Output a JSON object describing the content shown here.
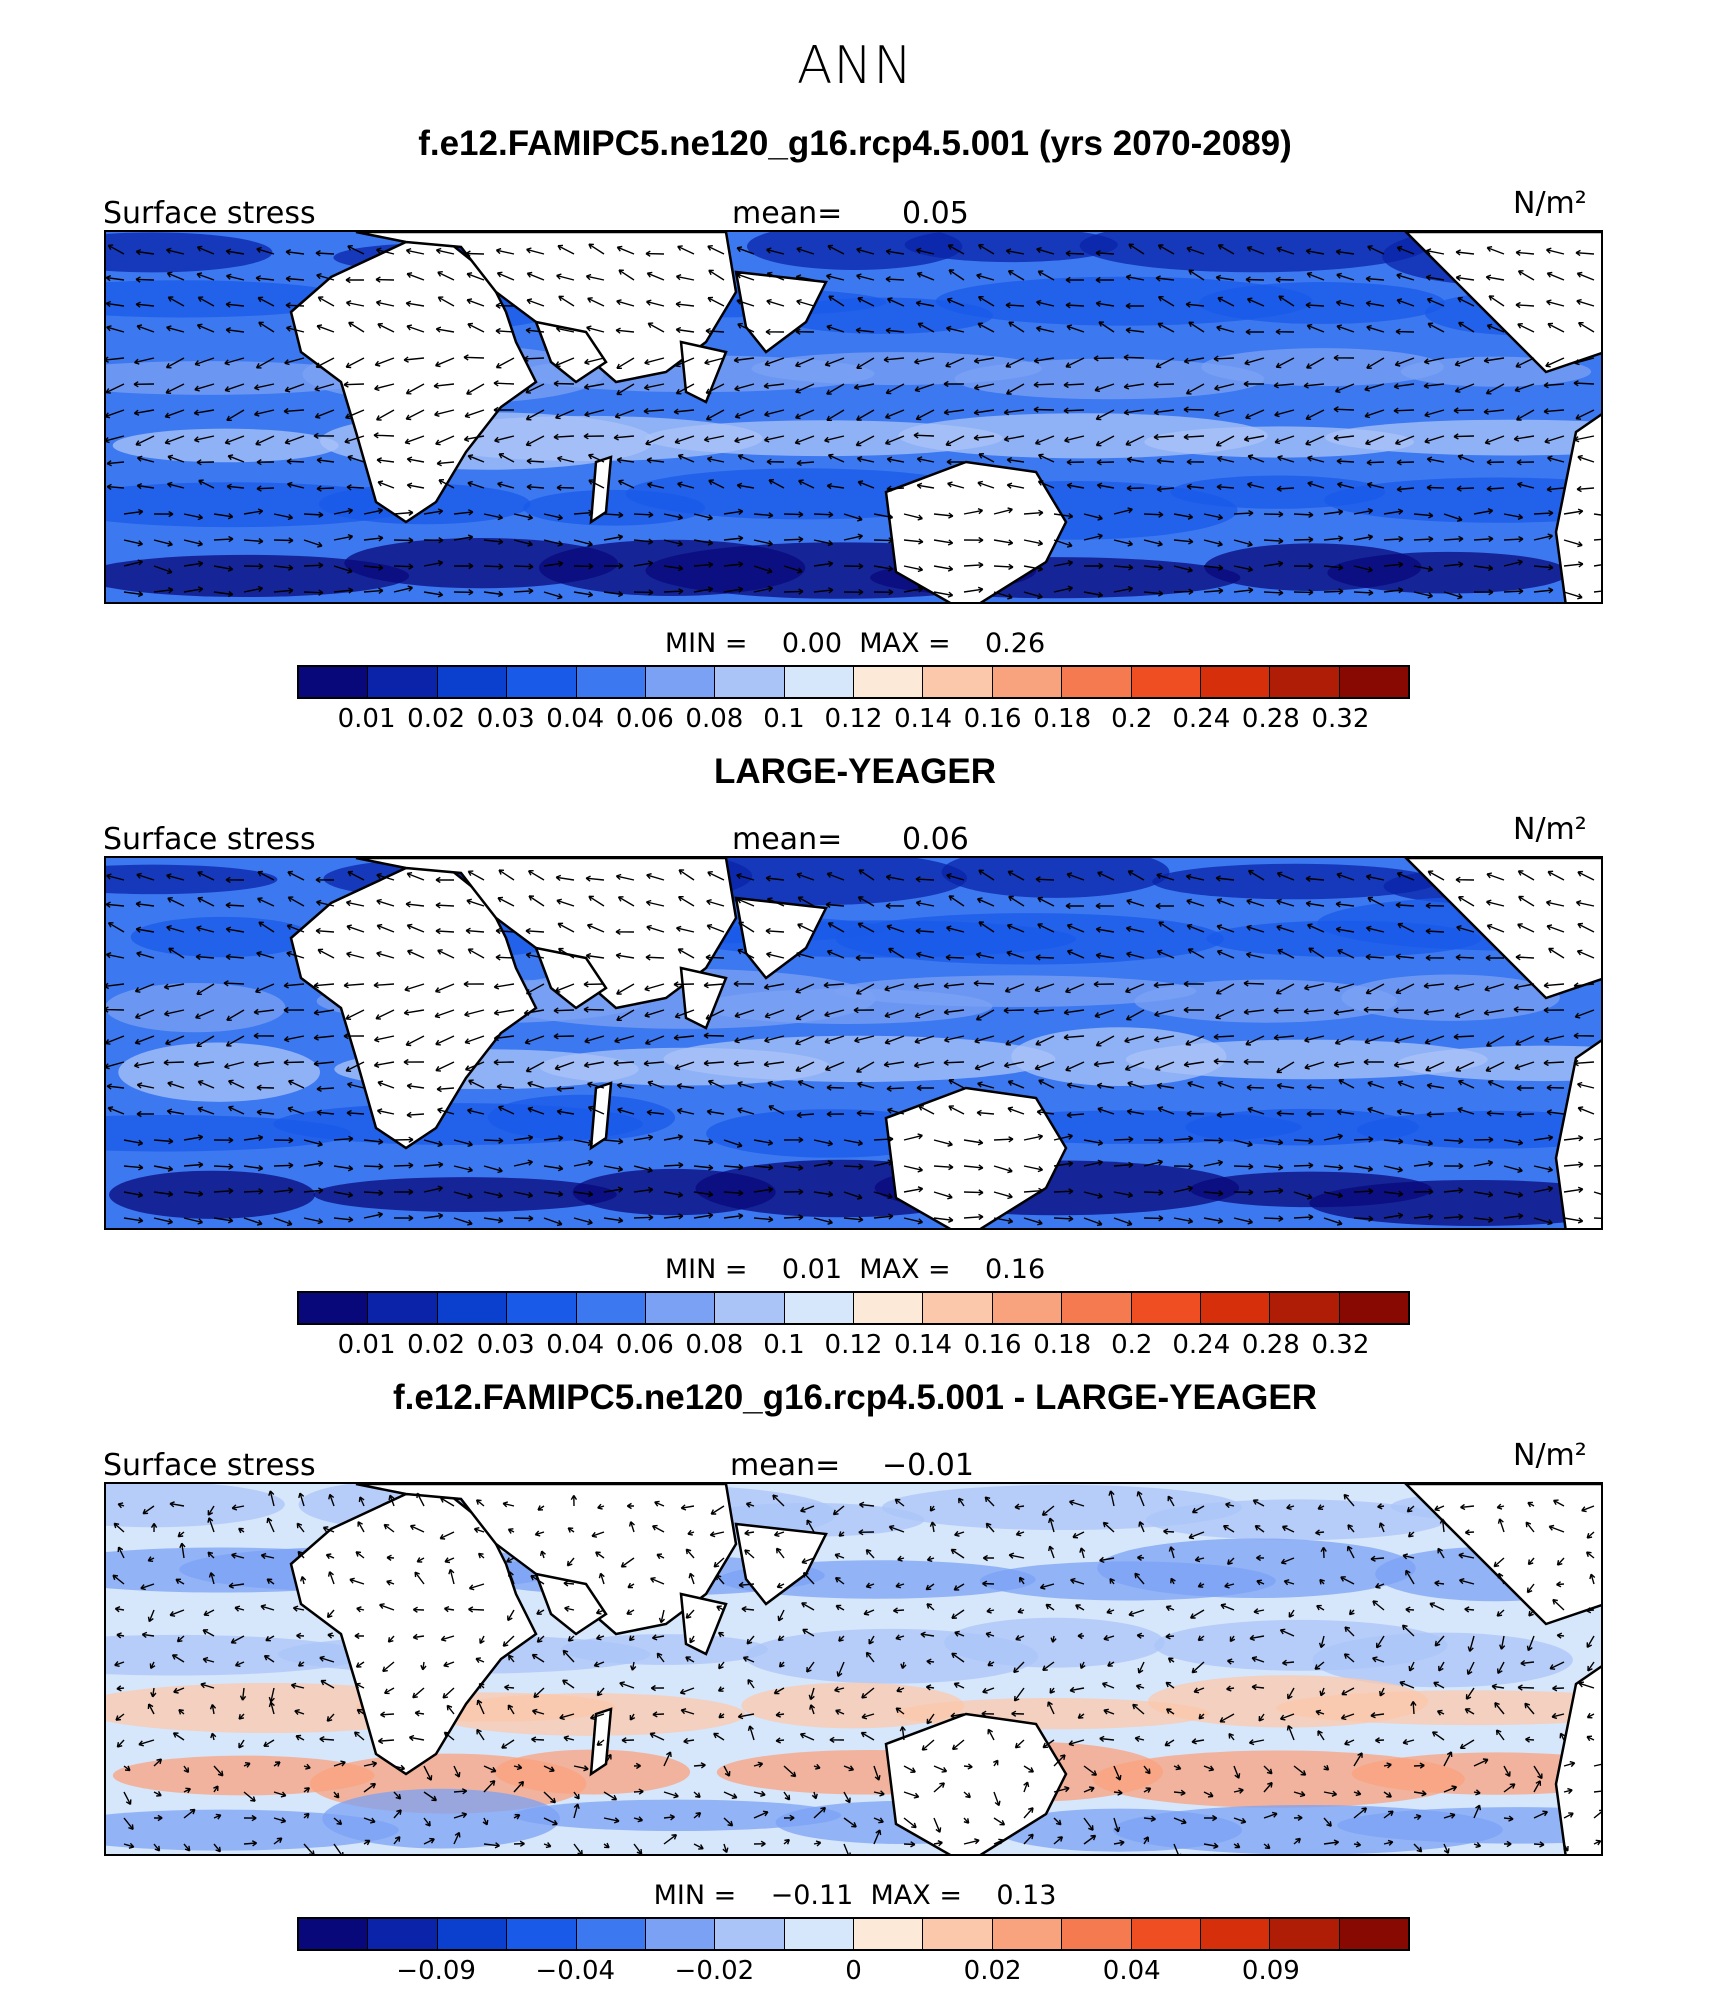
{
  "figure_title": "ANN",
  "unit_label": "N/m²",
  "colors": [
    "#08087a",
    "#0a23a8",
    "#0b3fce",
    "#1a5ae8",
    "#3c78f0",
    "#7ba1f4",
    "#abc4f8",
    "#d6e6fb",
    "#fde9d8",
    "#fcc8ab",
    "#f9a27e",
    "#f57a4f",
    "#ef4e22",
    "#d62f0c",
    "#b01d06",
    "#870901"
  ],
  "land_color": "#ffffff",
  "chart_data": [
    {
      "type": "heatmap",
      "title": "f.e12.FAMIPC5.ne120_g16.rcp4.5.001 (yrs 2070-2089)",
      "variable": "Surface stress",
      "mean_label": "mean=",
      "mean_value": "0.05",
      "min_label": "MIN =",
      "min_value": "0.00",
      "max_label": "MAX =",
      "max_value": "0.26",
      "colorbar_ticks": [
        "0.01",
        "0.02",
        "0.03",
        "0.04",
        "0.06",
        "0.08",
        "0.1",
        "0.12",
        "0.14",
        "0.16",
        "0.18",
        "0.2",
        "0.24",
        "0.28",
        "0.32"
      ],
      "tick_positions": [
        1,
        2,
        3,
        4,
        5,
        6,
        7,
        8,
        9,
        10,
        11,
        12,
        13,
        14,
        15
      ]
    },
    {
      "type": "heatmap",
      "title": "LARGE-YEAGER",
      "variable": "Surface stress",
      "mean_label": "mean=",
      "mean_value": "0.06",
      "min_label": "MIN =",
      "min_value": "0.01",
      "max_label": "MAX =",
      "max_value": "0.16",
      "colorbar_ticks": [
        "0.01",
        "0.02",
        "0.03",
        "0.04",
        "0.06",
        "0.08",
        "0.1",
        "0.12",
        "0.14",
        "0.16",
        "0.18",
        "0.2",
        "0.24",
        "0.28",
        "0.32"
      ],
      "tick_positions": [
        1,
        2,
        3,
        4,
        5,
        6,
        7,
        8,
        9,
        10,
        11,
        12,
        13,
        14,
        15
      ]
    },
    {
      "type": "heatmap",
      "title": "f.e12.FAMIPC5.ne120_g16.rcp4.5.001 - LARGE-YEAGER",
      "variable": "Surface stress",
      "mean_label": "mean=",
      "mean_value": "−0.01",
      "min_label": "MIN =",
      "min_value": "−0.11",
      "max_label": "MAX =",
      "max_value": "0.13",
      "colorbar_ticks": [
        "−0.09",
        "−0.04",
        "−0.02",
        "0",
        "0.02",
        "0.04",
        "0.09"
      ],
      "tick_positions": [
        2,
        4,
        6,
        8,
        10,
        12,
        14
      ]
    }
  ]
}
